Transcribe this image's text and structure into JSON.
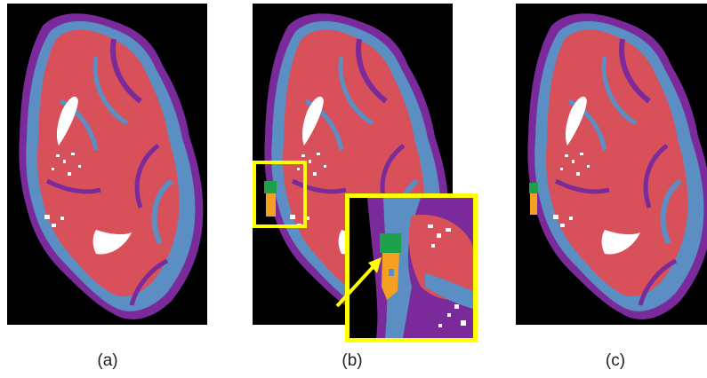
{
  "panels": [
    {
      "id": "a",
      "caption": "(a)"
    },
    {
      "id": "b",
      "caption": "(b)"
    },
    {
      "id": "c",
      "caption": "(c)"
    }
  ],
  "colors": {
    "background": "#000000",
    "white_matter": "#d8505a",
    "gray_matter": "#5b8fc4",
    "csf_border": "#7a2a9a",
    "ventricle": "#ffffff",
    "highlight_green": "#1ca04a",
    "highlight_orange": "#f5a020",
    "roi_outline": "#ffff00"
  }
}
